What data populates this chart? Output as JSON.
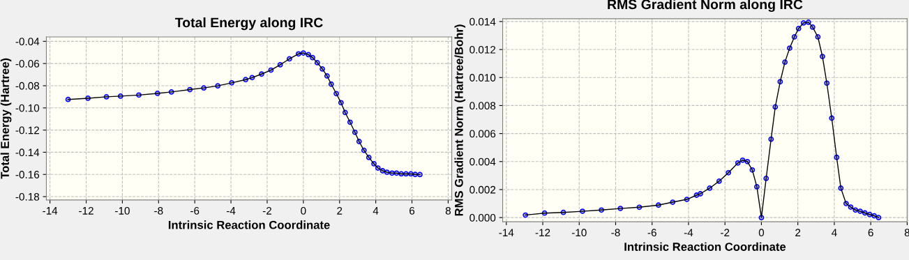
{
  "chart_data": [
    {
      "type": "line",
      "title": "Total Energy along IRC",
      "xlabel": "Intrinsic Reaction Coordinate",
      "ylabel": "Total Energy (Hartree)",
      "series": [
        {
          "color": "#0000ff",
          "x": [
            -13,
            -11.9,
            -10.88,
            -10.1,
            -9.09,
            -8.06,
            -7.29,
            -6.27,
            -5.5,
            -4.73,
            -3.96,
            -3.19,
            -2.83,
            -2.31,
            -1.79,
            -1.28,
            -0.77,
            -0.27,
            0,
            0.28,
            0.51,
            0.77,
            1.05,
            1.31,
            1.54,
            1.82,
            2.08,
            2.31,
            2.58,
            2.85,
            3.08,
            3.35,
            3.62,
            3.9,
            4.12,
            4.38,
            4.62,
            4.9,
            5.15,
            5.41,
            5.67,
            5.94,
            6.18,
            6.44
          ],
          "values": [
            -0.0924,
            -0.0913,
            -0.09,
            -0.0894,
            -0.0884,
            -0.0869,
            -0.0856,
            -0.0835,
            -0.082,
            -0.0801,
            -0.0774,
            -0.0745,
            -0.0727,
            -0.0695,
            -0.0659,
            -0.0611,
            -0.0558,
            -0.0513,
            -0.0505,
            -0.052,
            -0.0547,
            -0.0592,
            -0.0649,
            -0.0712,
            -0.0786,
            -0.0871,
            -0.0953,
            -0.1042,
            -0.1129,
            -0.122,
            -0.1303,
            -0.1383,
            -0.1447,
            -0.1504,
            -0.1542,
            -0.1567,
            -0.158,
            -0.1588,
            -0.1588,
            -0.1595,
            -0.1595,
            -0.1595,
            -0.16,
            -0.1601
          ]
        }
      ],
      "xlim": [
        -14.2,
        8.2
      ],
      "ylim": [
        -0.183,
        -0.036
      ],
      "xticks": [
        -14,
        -12,
        -10,
        -8,
        -6,
        -4,
        -2,
        0,
        2,
        4,
        6,
        8
      ],
      "yticks": [
        {
          "value": -0.18,
          "label": "-0.18"
        },
        {
          "value": -0.16,
          "label": "-0.16"
        },
        {
          "value": -0.14,
          "label": "-0.14"
        },
        {
          "value": -0.12,
          "label": "-0.12"
        },
        {
          "value": -0.1,
          "label": "-0.10"
        },
        {
          "value": -0.08,
          "label": "-0.08"
        },
        {
          "value": -0.06,
          "label": "-0.06"
        },
        {
          "value": -0.04,
          "label": "-0.04"
        }
      ],
      "grid": true,
      "marker": "circle",
      "line_style": "solid"
    },
    {
      "type": "line",
      "title": "RMS Gradient Norm along IRC",
      "xlabel": "Intrinsic Reaction Coordinate",
      "ylabel": "RMS Gradient Norm (Hartree/Bohr)",
      "series": [
        {
          "color": "#0000ff",
          "x": [
            -12.95,
            -11.9,
            -10.87,
            -9.82,
            -8.78,
            -7.74,
            -6.7,
            -5.65,
            -4.87,
            -4.09,
            -3.56,
            -3.35,
            -2.84,
            -2.32,
            -1.81,
            -1.29,
            -1.03,
            -0.77,
            -0.5,
            -0.25,
            0,
            0.26,
            0.53,
            0.76,
            1.03,
            1.29,
            1.55,
            1.81,
            2.04,
            2.31,
            2.58,
            2.81,
            3.1,
            3.35,
            3.59,
            3.86,
            4.13,
            4.36,
            4.65,
            4.9,
            5.16,
            5.42,
            5.68,
            5.94,
            6.19,
            6.43
          ],
          "values": [
            0.00018,
            0.00032,
            0.00037,
            0.00045,
            0.00054,
            0.00065,
            0.00074,
            0.00089,
            0.0011,
            0.0013,
            0.0016,
            0.0017,
            0.0021,
            0.0026,
            0.0032,
            0.0039,
            0.0041,
            0.004,
            0.0034,
            0.0022,
            0.0,
            0.0028,
            0.0056,
            0.0079,
            0.0097,
            0.0111,
            0.0121,
            0.0129,
            0.0135,
            0.0139,
            0.01395,
            0.0136,
            0.0129,
            0.0115,
            0.0096,
            0.0071,
            0.0043,
            0.0021,
            0.001,
            0.00075,
            0.00054,
            0.00045,
            0.00033,
            0.00022,
            0.00013,
            0.0
          ]
        }
      ],
      "xlim": [
        -14.2,
        8.0
      ],
      "ylim": [
        -0.0003,
        0.0142
      ],
      "xticks": [
        -14,
        -12,
        -10,
        -8,
        -6,
        -4,
        -2,
        0,
        2,
        4,
        6,
        8
      ],
      "yticks": [
        {
          "value": 0,
          "label": "0.000"
        },
        {
          "value": 0.002,
          "label": "0.002"
        },
        {
          "value": 0.004,
          "label": "0.004"
        },
        {
          "value": 0.006,
          "label": "0.006"
        },
        {
          "value": 0.008,
          "label": "0.008"
        },
        {
          "value": 0.01,
          "label": "0.010"
        },
        {
          "value": 0.012,
          "label": "0.012"
        },
        {
          "value": 0.014,
          "label": "0.014"
        }
      ],
      "grid": true,
      "marker": "circle",
      "line_style": "solid"
    }
  ]
}
